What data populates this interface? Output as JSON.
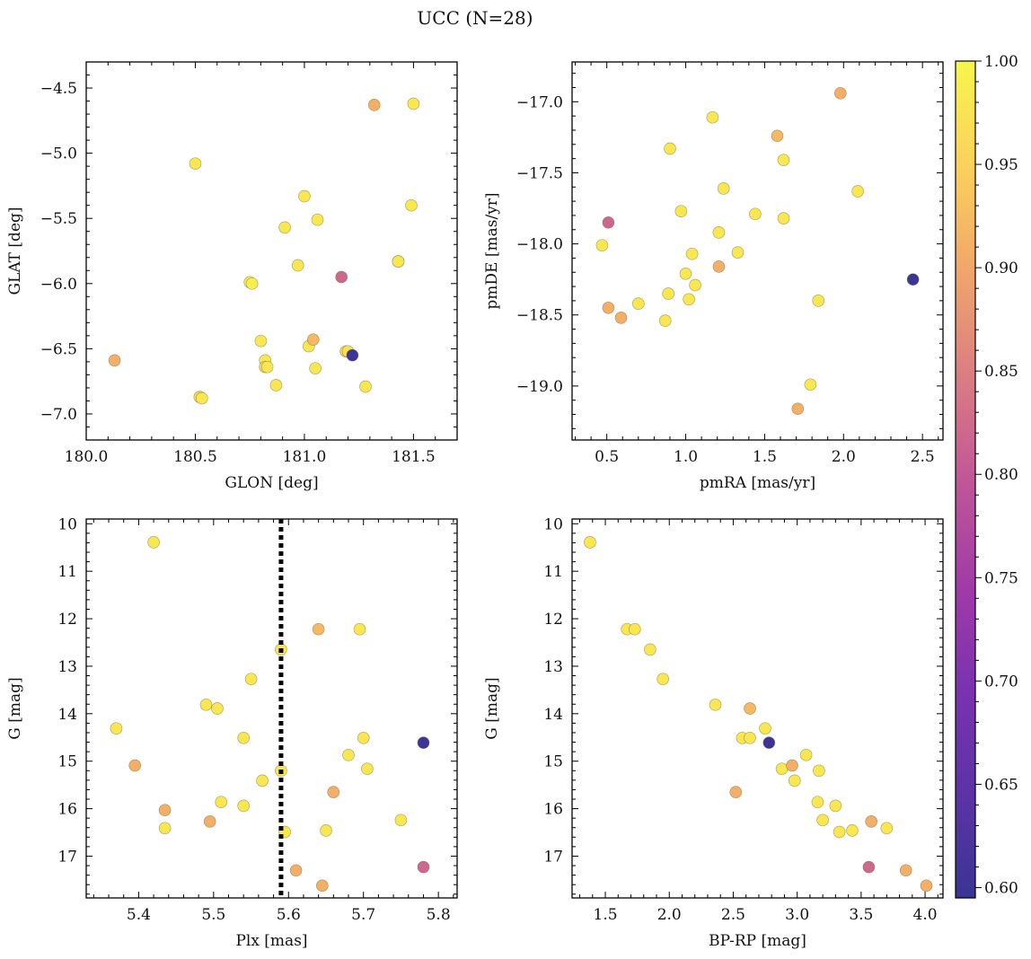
{
  "title": "UCC (N=28)",
  "colorbar": {
    "min": 0.595,
    "max": 1.0,
    "ticks": [
      0.6,
      0.65,
      0.7,
      0.75,
      0.8,
      0.85,
      0.9,
      0.95,
      1.0
    ],
    "tick_labels": [
      "0.60",
      "0.65",
      "0.70",
      "0.75",
      "0.80",
      "0.85",
      "0.90",
      "0.95",
      "1.00"
    ],
    "colormap": "plasma"
  },
  "chart_data": [
    {
      "type": "scatter",
      "xlabel": "GLON [deg]",
      "ylabel": "GLAT [deg]",
      "xlim": [
        180.0,
        181.7
      ],
      "ylim": [
        -7.2,
        -4.3
      ],
      "xticks": [
        180.0,
        180.5,
        181.0,
        181.5
      ],
      "xtick_labels": [
        "180.0",
        "180.5",
        "181.0",
        "181.5"
      ],
      "yticks": [
        -7.0,
        -6.5,
        -6.0,
        -5.5,
        -5.0,
        -4.5
      ],
      "ytick_labels": [
        "−7.0",
        "−6.5",
        "−6.0",
        "−5.5",
        "−5.0",
        "−4.5"
      ],
      "y_inverted": false,
      "points": [
        [
          180.13,
          -6.59,
          0.91
        ],
        [
          180.5,
          -5.08,
          0.98
        ],
        [
          180.52,
          -6.87,
          0.96
        ],
        [
          180.53,
          -6.88,
          0.98
        ],
        [
          180.75,
          -5.99,
          0.98
        ],
        [
          180.76,
          -6.0,
          0.99
        ],
        [
          180.8,
          -6.44,
          0.98
        ],
        [
          180.82,
          -6.59,
          0.98
        ],
        [
          180.82,
          -6.64,
          0.96
        ],
        [
          180.83,
          -6.64,
          0.98
        ],
        [
          180.87,
          -6.78,
          0.98
        ],
        [
          180.91,
          -5.57,
          0.98
        ],
        [
          180.97,
          -5.86,
          0.98
        ],
        [
          181.0,
          -5.33,
          0.98
        ],
        [
          181.02,
          -6.48,
          0.98
        ],
        [
          181.04,
          -6.43,
          0.92
        ],
        [
          181.05,
          -6.65,
          0.98
        ],
        [
          181.06,
          -5.51,
          0.98
        ],
        [
          181.17,
          -5.95,
          0.82
        ],
        [
          181.19,
          -6.52,
          0.95
        ],
        [
          181.2,
          -6.52,
          0.97
        ],
        [
          181.22,
          -6.55,
          0.6
        ],
        [
          181.28,
          -6.79,
          0.98
        ],
        [
          181.32,
          -4.63,
          0.91
        ],
        [
          181.43,
          -5.83,
          0.97
        ],
        [
          181.43,
          -5.83,
          0.98
        ],
        [
          181.49,
          -5.4,
          0.98
        ],
        [
          181.5,
          -4.62,
          0.98
        ]
      ]
    },
    {
      "type": "scatter",
      "xlabel": "pmRA [mas/yr]",
      "ylabel": "pmDE [mas/yr]",
      "xlim": [
        0.28,
        2.63
      ],
      "ylim": [
        -19.38,
        -16.72
      ],
      "xticks": [
        0.5,
        1.0,
        1.5,
        2.0,
        2.5
      ],
      "xtick_labels": [
        "0.5",
        "1.0",
        "1.5",
        "2.0",
        "2.5"
      ],
      "yticks": [
        -19.0,
        -18.5,
        -18.0,
        -17.5,
        -17.0
      ],
      "ytick_labels": [
        "−19.0",
        "−18.5",
        "−18.0",
        "−17.5",
        "−17.0"
      ],
      "y_inverted": false,
      "points": [
        [
          0.47,
          -18.01,
          0.98
        ],
        [
          0.51,
          -17.85,
          0.82
        ],
        [
          0.51,
          -18.45,
          0.91
        ],
        [
          0.59,
          -18.52,
          0.91
        ],
        [
          0.7,
          -18.42,
          0.98
        ],
        [
          0.87,
          -18.54,
          0.98
        ],
        [
          0.89,
          -18.35,
          0.98
        ],
        [
          0.9,
          -17.33,
          0.98
        ],
        [
          0.97,
          -17.77,
          0.98
        ],
        [
          1.0,
          -18.21,
          0.98
        ],
        [
          1.02,
          -18.39,
          0.98
        ],
        [
          1.04,
          -18.07,
          0.98
        ],
        [
          1.06,
          -18.29,
          0.98
        ],
        [
          1.17,
          -17.11,
          0.98
        ],
        [
          1.21,
          -17.92,
          0.98
        ],
        [
          1.21,
          -18.16,
          0.91
        ],
        [
          1.24,
          -17.61,
          0.98
        ],
        [
          1.33,
          -18.06,
          0.98
        ],
        [
          1.44,
          -17.79,
          0.98
        ],
        [
          1.58,
          -17.24,
          0.92
        ],
        [
          1.62,
          -17.41,
          0.98
        ],
        [
          1.62,
          -17.82,
          0.98
        ],
        [
          1.71,
          -19.16,
          0.91
        ],
        [
          1.79,
          -18.99,
          0.98
        ],
        [
          1.84,
          -18.4,
          0.98
        ],
        [
          1.98,
          -16.94,
          0.91
        ],
        [
          2.09,
          -17.63,
          0.98
        ],
        [
          2.44,
          -18.25,
          0.6
        ]
      ]
    },
    {
      "type": "scatter",
      "xlabel": "Plx [mas]",
      "ylabel": "G [mag]",
      "xlim": [
        5.33,
        5.825
      ],
      "ylim": [
        17.88,
        9.9
      ],
      "xticks": [
        5.4,
        5.5,
        5.6,
        5.7,
        5.8
      ],
      "xtick_labels": [
        "5.4",
        "5.5",
        "5.6",
        "5.7",
        "5.8"
      ],
      "yticks": [
        10,
        11,
        12,
        13,
        14,
        15,
        16,
        17
      ],
      "ytick_labels": [
        "10",
        "11",
        "12",
        "13",
        "14",
        "15",
        "16",
        "17"
      ],
      "y_inverted": true,
      "vline": 5.59,
      "points": [
        [
          5.37,
          14.31,
          0.98
        ],
        [
          5.395,
          15.09,
          0.91
        ],
        [
          5.42,
          10.39,
          0.98
        ],
        [
          5.435,
          16.03,
          0.91
        ],
        [
          5.435,
          16.41,
          0.98
        ],
        [
          5.49,
          13.81,
          0.98
        ],
        [
          5.495,
          16.27,
          0.91
        ],
        [
          5.505,
          13.89,
          0.98
        ],
        [
          5.51,
          15.86,
          0.98
        ],
        [
          5.54,
          15.94,
          0.98
        ],
        [
          5.54,
          14.51,
          0.98
        ],
        [
          5.55,
          13.27,
          0.98
        ],
        [
          5.565,
          15.41,
          0.98
        ],
        [
          5.59,
          12.65,
          0.98
        ],
        [
          5.59,
          15.2,
          0.98
        ],
        [
          5.595,
          16.49,
          0.98
        ],
        [
          5.61,
          17.3,
          0.91
        ],
        [
          5.64,
          12.22,
          0.92
        ],
        [
          5.645,
          17.62,
          0.91
        ],
        [
          5.65,
          16.46,
          0.98
        ],
        [
          5.66,
          15.65,
          0.91
        ],
        [
          5.68,
          14.87,
          0.98
        ],
        [
          5.695,
          12.22,
          0.98
        ],
        [
          5.7,
          14.51,
          0.98
        ],
        [
          5.705,
          15.16,
          0.98
        ],
        [
          5.75,
          16.24,
          0.98
        ],
        [
          5.78,
          14.61,
          0.6
        ],
        [
          5.78,
          17.23,
          0.82
        ]
      ]
    },
    {
      "type": "scatter",
      "xlabel": "BP-RP [mag]",
      "ylabel": "G [mag]",
      "xlim": [
        1.24,
        4.14
      ],
      "ylim": [
        17.88,
        9.9
      ],
      "xticks": [
        1.5,
        2.0,
        2.5,
        3.0,
        3.5,
        4.0
      ],
      "xtick_labels": [
        "1.5",
        "2.0",
        "2.5",
        "3.0",
        "3.5",
        "4.0"
      ],
      "yticks": [
        10,
        11,
        12,
        13,
        14,
        15,
        16,
        17
      ],
      "ytick_labels": [
        "10",
        "11",
        "12",
        "13",
        "14",
        "15",
        "16",
        "17"
      ],
      "y_inverted": true,
      "points": [
        [
          1.38,
          10.39,
          0.98
        ],
        [
          1.67,
          12.22,
          0.98
        ],
        [
          1.73,
          12.22,
          0.98
        ],
        [
          1.85,
          12.65,
          0.98
        ],
        [
          1.95,
          13.27,
          0.98
        ],
        [
          2.36,
          13.81,
          0.98
        ],
        [
          2.52,
          15.65,
          0.91
        ],
        [
          2.57,
          14.51,
          0.98
        ],
        [
          2.63,
          14.51,
          0.98
        ],
        [
          2.63,
          13.89,
          0.92
        ],
        [
          2.75,
          14.31,
          0.98
        ],
        [
          2.78,
          14.61,
          0.6
        ],
        [
          2.88,
          15.16,
          0.98
        ],
        [
          2.96,
          15.09,
          0.91
        ],
        [
          2.98,
          15.41,
          0.98
        ],
        [
          3.07,
          14.87,
          0.98
        ],
        [
          3.16,
          15.86,
          0.98
        ],
        [
          3.17,
          15.2,
          0.98
        ],
        [
          3.2,
          16.24,
          0.98
        ],
        [
          3.3,
          15.94,
          0.98
        ],
        [
          3.33,
          16.49,
          0.98
        ],
        [
          3.43,
          16.46,
          0.98
        ],
        [
          3.56,
          17.23,
          0.82
        ],
        [
          3.58,
          16.27,
          0.91
        ],
        [
          3.7,
          16.41,
          0.98
        ],
        [
          3.85,
          17.3,
          0.91
        ],
        [
          4.01,
          17.62,
          0.91
        ]
      ]
    }
  ]
}
